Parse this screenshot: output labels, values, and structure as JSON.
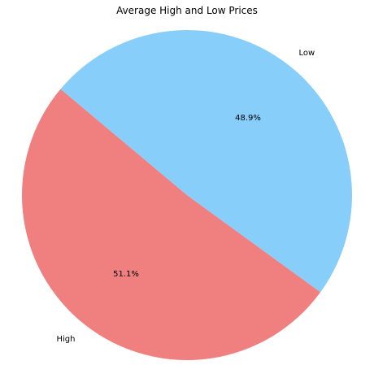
{
  "chart_data": {
    "type": "pie",
    "title": "Average High and Low Prices",
    "labels": [
      "High",
      "Low"
    ],
    "values": [
      51.1,
      48.9
    ],
    "percent_labels": [
      "51.1%",
      "48.9%"
    ],
    "colors": [
      "#f08080",
      "#87cefa"
    ],
    "start_angle_deg": 140,
    "direction": "counterclockwise"
  }
}
